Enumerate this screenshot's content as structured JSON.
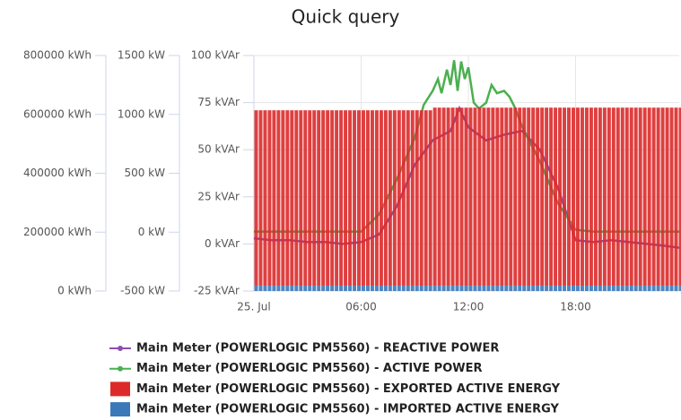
{
  "chart_data": {
    "type": "combo",
    "title": "Quick query",
    "xlim": [
      0,
      23.8
    ],
    "xticks": [
      {
        "value": 0,
        "label": "25. Jul"
      },
      {
        "value": 6,
        "label": "06:00"
      },
      {
        "value": 12,
        "label": "12:00"
      },
      {
        "value": 18,
        "label": "18:00"
      }
    ],
    "ylim": [
      0,
      800000
    ],
    "yticks": [
      {
        "value": 0,
        "label": "0 kWh"
      },
      {
        "value": 200000,
        "label": "200000 kWh"
      },
      {
        "value": 400000,
        "label": "400000 kWh"
      },
      {
        "value": 600000,
        "label": "600000 kWh"
      },
      {
        "value": 800000,
        "label": "800000 kWh"
      }
    ],
    "y2lim": [
      -500,
      1500
    ],
    "y2ticks": [
      {
        "value": -500,
        "label": "-500 kW"
      },
      {
        "value": 0,
        "label": "0 kW"
      },
      {
        "value": 500,
        "label": "500 kW"
      },
      {
        "value": 1000,
        "label": "1000 kW"
      },
      {
        "value": 1500,
        "label": "1500 kW"
      }
    ],
    "y3lim": [
      -25,
      100
    ],
    "y3ticks": [
      {
        "value": -25,
        "label": "-25 kVAr"
      },
      {
        "value": 0,
        "label": "0 kVAr"
      },
      {
        "value": 25,
        "label": "25 kVAr"
      },
      {
        "value": 50,
        "label": "50 kVAr"
      },
      {
        "value": 75,
        "label": "75 kVAr"
      },
      {
        "value": 100,
        "label": "100 kVAr"
      }
    ],
    "grid": true,
    "stacked": true,
    "x": [
      0,
      0.25,
      0.5,
      0.75,
      1,
      1.25,
      1.5,
      1.75,
      2,
      2.25,
      2.5,
      2.75,
      3,
      3.25,
      3.5,
      3.75,
      4,
      4.25,
      4.5,
      4.75,
      5,
      5.25,
      5.5,
      5.75,
      6,
      6.25,
      6.5,
      6.75,
      7,
      7.25,
      7.5,
      7.75,
      8,
      8.25,
      8.5,
      8.75,
      9,
      9.25,
      9.5,
      9.75,
      10,
      10.25,
      10.5,
      10.75,
      11,
      11.25,
      11.5,
      11.75,
      12,
      12.25,
      12.5,
      12.75,
      13,
      13.25,
      13.5,
      13.75,
      14,
      14.25,
      14.5,
      14.75,
      15,
      15.25,
      15.5,
      15.75,
      16,
      16.25,
      16.5,
      16.75,
      17,
      17.25,
      17.5,
      17.75,
      18,
      18.25,
      18.5,
      18.75,
      19,
      19.25,
      19.5,
      19.75,
      20,
      20.25,
      20.5,
      20.75,
      21,
      21.25,
      21.5,
      21.75,
      22,
      22.25,
      22.5,
      22.75,
      23,
      23.25,
      23.5,
      23.75
    ],
    "series": [
      {
        "name": "Main Meter (POWERLOGIC PM5560) - REACTIVE POWER",
        "type": "line",
        "axis": "y3",
        "color": "#8a4fb5",
        "x": [
          0,
          1,
          2,
          3,
          4,
          5,
          6,
          7,
          8,
          9,
          10,
          11,
          11.5,
          12,
          13,
          14,
          15,
          16,
          17,
          18,
          19,
          20,
          21,
          22,
          23,
          23.8
        ],
        "values": [
          3,
          2,
          2,
          1,
          1,
          0,
          1,
          5,
          20,
          42,
          55,
          60,
          72,
          62,
          55,
          58,
          60,
          50,
          30,
          2,
          1,
          2,
          1,
          0,
          -1,
          -2
        ]
      },
      {
        "name": "Main Meter (POWERLOGIC PM5560) - ACTIVE POWER",
        "type": "line",
        "axis": "y2",
        "color": "#4caf50",
        "x": [
          0,
          6,
          7,
          8,
          9,
          9.5,
          10,
          10.3,
          10.5,
          10.8,
          11,
          11.2,
          11.4,
          11.6,
          11.8,
          12,
          12.3,
          12.6,
          13,
          13.3,
          13.6,
          14,
          14.3,
          14.6,
          15,
          16,
          17,
          18,
          19,
          23.8
        ],
        "values": [
          5,
          5,
          150,
          450,
          800,
          1080,
          1200,
          1300,
          1180,
          1380,
          1250,
          1460,
          1200,
          1450,
          1300,
          1400,
          1100,
          1050,
          1100,
          1250,
          1180,
          1200,
          1150,
          1060,
          900,
          600,
          250,
          20,
          5,
          5
        ]
      },
      {
        "name": "Main Meter (POWERLOGIC PM5560) - EXPORTED ACTIVE ENERGY",
        "type": "bar",
        "axis": "y",
        "color": "#dc2a2a",
        "values": [
          596000,
          596000,
          596000,
          596000,
          596000,
          596000,
          596000,
          596000,
          596000,
          596000,
          596000,
          596000,
          596000,
          596000,
          596000,
          596000,
          596000,
          596000,
          596000,
          596000,
          596000,
          596000,
          596000,
          596000,
          596000,
          596000,
          596000,
          596000,
          596000,
          596000,
          596000,
          596000,
          596000,
          596000,
          596000,
          596000,
          596000,
          596000,
          596000,
          596000,
          605000,
          605000,
          605000,
          605000,
          605000,
          605000,
          605000,
          605000,
          605000,
          605000,
          605000,
          605000,
          605000,
          605000,
          605000,
          605000,
          605000,
          605000,
          605000,
          605000,
          605000,
          605000,
          605000,
          605000,
          605000,
          605000,
          605000,
          605000,
          605000,
          605000,
          605000,
          605000,
          605000,
          605000,
          605000,
          605000,
          605000,
          605000,
          605000,
          605000,
          605000,
          605000,
          605000,
          605000,
          605000,
          605000,
          605000,
          605000,
          605000,
          605000,
          605000,
          605000,
          605000,
          605000,
          605000,
          605000
        ]
      },
      {
        "name": "Main Meter (POWERLOGIC PM5560) - IMPORTED ACTIVE ENERGY",
        "type": "bar",
        "axis": "y",
        "color": "#3b78b8",
        "values": [
          18000,
          18000,
          18000,
          18000,
          18000,
          18000,
          18000,
          18000,
          18000,
          18000,
          18000,
          18000,
          18000,
          18000,
          18000,
          18000,
          18000,
          18000,
          18000,
          18000,
          18000,
          18000,
          18000,
          18000,
          18000,
          18000,
          18000,
          18000,
          18000,
          18000,
          18000,
          18000,
          18000,
          18000,
          18000,
          18000,
          18000,
          18000,
          18000,
          18000,
          18000,
          18000,
          18000,
          18000,
          18000,
          18000,
          18000,
          18000,
          18000,
          18000,
          18000,
          18000,
          18000,
          18000,
          18000,
          18000,
          18000,
          18000,
          18000,
          18000,
          18000,
          18000,
          18000,
          18000,
          18000,
          18000,
          18000,
          18000,
          18000,
          18000,
          18000,
          18000,
          18000,
          18000,
          18000,
          18000,
          18000,
          18000,
          18000,
          18000,
          18000,
          18000,
          18000,
          18000,
          18000,
          18000,
          18000,
          18000,
          18000,
          18000,
          18000,
          18000,
          18000,
          18000,
          18000,
          18000
        ]
      }
    ]
  }
}
